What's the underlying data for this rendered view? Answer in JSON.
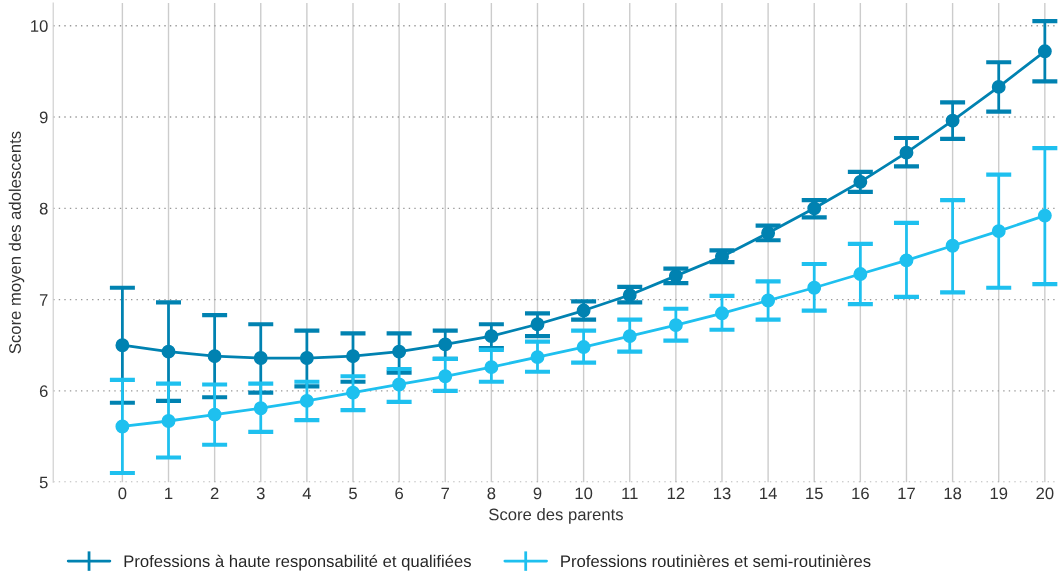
{
  "chart_data": {
    "type": "line",
    "xlabel": "Score des parents",
    "ylabel": "Score moyen des adolescents",
    "x": [
      0,
      1,
      2,
      3,
      4,
      5,
      6,
      7,
      8,
      9,
      10,
      11,
      12,
      13,
      14,
      15,
      16,
      17,
      18,
      19,
      20
    ],
    "xlim": [
      -1.5,
      20.3
    ],
    "xticks": [
      0,
      1,
      2,
      3,
      4,
      5,
      6,
      7,
      8,
      9,
      10,
      11,
      12,
      13,
      14,
      15,
      16,
      17,
      18,
      19,
      20
    ],
    "ylim": [
      5,
      10.25
    ],
    "yticks": [
      5,
      6,
      7,
      8,
      9,
      10
    ],
    "grid": true,
    "legend": "bottom",
    "marker": "circle",
    "line_style": "solid",
    "series": [
      {
        "name": "Professions à haute responsabilité et qualifiées",
        "color": "#0082b1",
        "values": [
          6.5,
          6.43,
          6.38,
          6.36,
          6.36,
          6.38,
          6.43,
          6.51,
          6.6,
          6.73,
          6.88,
          7.05,
          7.26,
          7.47,
          7.73,
          8.0,
          8.29,
          8.61,
          8.96,
          9.33,
          9.72
        ],
        "errors": [
          [
            5.87,
            7.13
          ],
          [
            5.89,
            6.97
          ],
          [
            5.93,
            6.83
          ],
          [
            5.98,
            6.73
          ],
          [
            6.05,
            6.66
          ],
          [
            6.1,
            6.63
          ],
          [
            6.2,
            6.63
          ],
          [
            6.35,
            6.66
          ],
          [
            6.47,
            6.73
          ],
          [
            6.6,
            6.85
          ],
          [
            6.78,
            6.98
          ],
          [
            6.97,
            7.14
          ],
          [
            7.18,
            7.34
          ],
          [
            7.41,
            7.54
          ],
          [
            7.65,
            7.81
          ],
          [
            7.9,
            8.09
          ],
          [
            8.18,
            8.4
          ],
          [
            8.46,
            8.77
          ],
          [
            8.76,
            9.16
          ],
          [
            9.06,
            9.6
          ],
          [
            9.39,
            10.05
          ]
        ]
      },
      {
        "name": "Professions routinières et semi-routinières",
        "color": "#1ec0ef",
        "values": [
          5.61,
          5.67,
          5.74,
          5.81,
          5.89,
          5.98,
          6.07,
          6.16,
          6.26,
          6.37,
          6.48,
          6.6,
          6.72,
          6.85,
          6.99,
          7.13,
          7.28,
          7.43,
          7.59,
          7.75,
          7.92
        ],
        "errors": [
          [
            5.1,
            6.12
          ],
          [
            5.27,
            6.08
          ],
          [
            5.41,
            6.07
          ],
          [
            5.55,
            6.08
          ],
          [
            5.68,
            6.1
          ],
          [
            5.79,
            6.16
          ],
          [
            5.88,
            6.24
          ],
          [
            6.0,
            6.35
          ],
          [
            6.1,
            6.45
          ],
          [
            6.21,
            6.54
          ],
          [
            6.31,
            6.66
          ],
          [
            6.43,
            6.78
          ],
          [
            6.55,
            6.9
          ],
          [
            6.67,
            7.04
          ],
          [
            6.78,
            7.2
          ],
          [
            6.88,
            7.39
          ],
          [
            6.95,
            7.61
          ],
          [
            7.03,
            7.84
          ],
          [
            7.08,
            8.09
          ],
          [
            7.13,
            8.37
          ],
          [
            7.17,
            8.66
          ]
        ]
      }
    ]
  }
}
